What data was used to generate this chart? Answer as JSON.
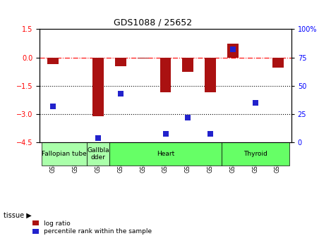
{
  "title": "GDS1088 / 25652",
  "samples": [
    "GSM39991",
    "GSM40000",
    "GSM39993",
    "GSM39992",
    "GSM39994",
    "GSM39999",
    "GSM40001",
    "GSM39995",
    "GSM39996",
    "GSM39997",
    "GSM39998"
  ],
  "log_ratio": [
    -0.35,
    0.0,
    -3.1,
    -0.45,
    -0.05,
    -1.85,
    -0.75,
    -1.85,
    0.75,
    0.0,
    -0.55
  ],
  "percentile": [
    32,
    null,
    4,
    43,
    null,
    8,
    22,
    8,
    82,
    35,
    null
  ],
  "ylim_left": [
    -4.5,
    1.5
  ],
  "ylim_right": [
    0,
    100
  ],
  "yticks_left": [
    -4.5,
    -3.0,
    -1.5,
    0.0,
    1.5
  ],
  "yticks_right": [
    0,
    25,
    50,
    75,
    100
  ],
  "hlines_dotted": [
    -1.5,
    -3.0
  ],
  "hline_dashdot": 0.0,
  "tissue_groups": [
    {
      "label": "Fallopian tube",
      "start": 0,
      "end": 2,
      "color": "#aaffaa"
    },
    {
      "label": "Gallbla\ndder",
      "start": 2,
      "end": 3,
      "color": "#aaffaa"
    },
    {
      "label": "Heart",
      "start": 3,
      "end": 8,
      "color": "#66ff66"
    },
    {
      "label": "Thyroid",
      "start": 8,
      "end": 11,
      "color": "#66ff66"
    }
  ],
  "bar_color": "#aa1111",
  "dot_color": "#2222cc",
  "bar_width": 0.5,
  "dot_size": 40,
  "legend_labels": [
    "log ratio",
    "percentile rank within the sample"
  ],
  "legend_colors": [
    "#aa1111",
    "#2222cc"
  ],
  "tissue_label": "tissue"
}
